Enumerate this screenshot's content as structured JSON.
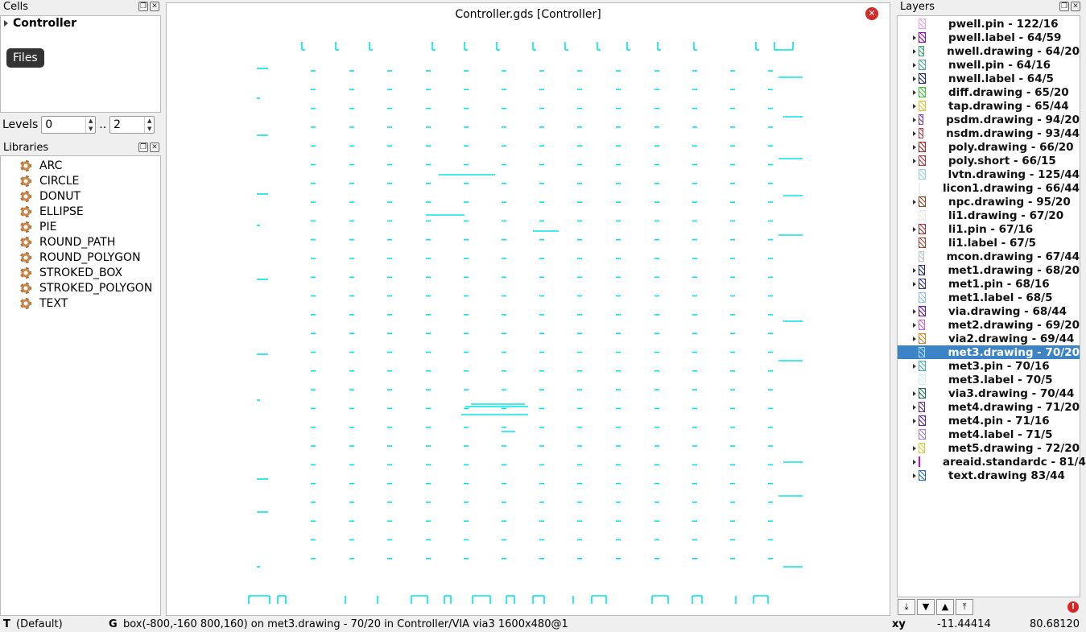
{
  "cells_panel": {
    "title": "Cells",
    "tree_root": "Controller",
    "tooltip": "Files"
  },
  "levels": {
    "label": "Levels",
    "from": "0",
    "separator": "..",
    "to": "2"
  },
  "libraries_panel": {
    "title": "Libraries",
    "items": [
      "ARC",
      "CIRCLE",
      "DONUT",
      "ELLIPSE",
      "PIE",
      "ROUND_PATH",
      "ROUND_POLYGON",
      "STROKED_BOX",
      "STROKED_POLYGON",
      "TEXT"
    ]
  },
  "canvas": {
    "title": "Controller.gds [Controller]",
    "shape_color": "#00e5e5"
  },
  "layers_panel": {
    "title": "Layers",
    "items": [
      {
        "label": "pwell.pin - 122/16",
        "color": "#f0a0e8",
        "arrow": false
      },
      {
        "label": "pwell.label - 64/59",
        "color": "#9a00e0",
        "arrow": true
      },
      {
        "label": "nwell.drawing - 64/20",
        "color": "#30b060",
        "arrow": true
      },
      {
        "label": "nwell.pin - 64/16",
        "color": "#50b090",
        "arrow": true
      },
      {
        "label": "nwell.label - 64/5",
        "color": "#202870",
        "arrow": true
      },
      {
        "label": "diff.drawing - 65/20",
        "color": "#30d030",
        "arrow": true
      },
      {
        "label": "tap.drawing - 65/44",
        "color": "#d8c830",
        "arrow": true
      },
      {
        "label": "psdm.drawing - 94/20",
        "color": "#8040c0",
        "arrow": true
      },
      {
        "label": "nsdm.drawing - 93/44",
        "color": "#c04050",
        "arrow": true
      },
      {
        "label": "poly.drawing - 66/20",
        "color": "#c02020",
        "arrow": true
      },
      {
        "label": "poly.short - 66/15",
        "color": "#c03030",
        "arrow": true
      },
      {
        "label": "lvtn.drawing - 125/44",
        "color": "#a0d0f0",
        "arrow": false
      },
      {
        "label": "licon1.drawing - 66/44",
        "color": "#f0f0f0",
        "arrow": false
      },
      {
        "label": "npc.drawing - 95/20",
        "color": "#a04020",
        "arrow": true
      },
      {
        "label": "li1.drawing - 67/20",
        "color": "#f0e8e8",
        "arrow": false
      },
      {
        "label": "li1.pin - 67/16",
        "color": "#b03030",
        "arrow": true
      },
      {
        "label": "li1.label - 67/5",
        "color": "#b04030",
        "arrow": false
      },
      {
        "label": "mcon.drawing - 67/44",
        "color": "#c0c0d0",
        "arrow": false
      },
      {
        "label": "met1.drawing - 68/20",
        "color": "#202898",
        "arrow": true
      },
      {
        "label": "met1.pin - 68/16",
        "color": "#3030a0",
        "arrow": true
      },
      {
        "label": "met1.label - 68/5",
        "color": "#90c0f0",
        "arrow": false
      },
      {
        "label": "via.drawing - 68/44",
        "color": "#6010d0",
        "arrow": true
      },
      {
        "label": "met2.drawing - 69/20",
        "color": "#d060d0",
        "arrow": true
      },
      {
        "label": "via2.drawing - 69/44",
        "color": "#e08020",
        "arrow": true
      },
      {
        "label": "met3.drawing - 70/20",
        "color": "#a0d8f0",
        "arrow": false
      },
      {
        "label": "met3.pin - 70/16",
        "color": "#40b0b0",
        "arrow": true
      },
      {
        "label": "met3.label - 70/5",
        "color": "#d0f0f8",
        "arrow": false
      },
      {
        "label": "via3.drawing - 70/44",
        "color": "#207050",
        "arrow": true
      },
      {
        "label": "met4.drawing - 71/20",
        "color": "#6030a0",
        "arrow": true
      },
      {
        "label": "met4.pin - 71/16",
        "color": "#6020b0",
        "arrow": true
      },
      {
        "label": "met4.label - 71/5",
        "color": "#a080e0",
        "arrow": false
      },
      {
        "label": "met5.drawing - 72/20",
        "color": "#d0d040",
        "arrow": true
      },
      {
        "label": "areaid.standardc - 81/4",
        "color": "#e000e0",
        "arrow": true
      },
      {
        "label": "text.drawing 83/44",
        "color": "#2070c0",
        "arrow": true
      }
    ],
    "selected_index": 24
  },
  "status_bar": {
    "mode_key": "T",
    "mode": "(Default)",
    "grid_key": "G",
    "info": "box(-800,-160 800,160) on met3.drawing - 70/20 in Controller/VIA  via3  1600x480@1",
    "coord_label": "xy",
    "x": "-11.44414",
    "y": "80.68120"
  }
}
